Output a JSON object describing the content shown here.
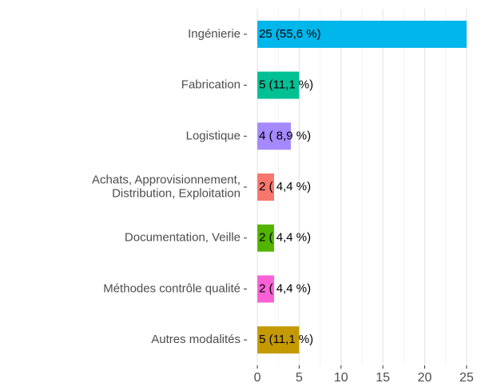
{
  "chart_data": {
    "type": "hbar",
    "categories": [
      "Ingénierie",
      "Fabrication",
      "Logistique",
      "Achats, Approvisionnement,\nDistribution, Exploitation",
      "Documentation, Veille",
      "Méthodes contrôle qualité",
      "Autres modalités"
    ],
    "values": [
      25,
      5,
      4,
      2,
      2,
      2,
      5
    ],
    "value_labels": [
      "25 (55,6 %)",
      "5 (11,1 %)",
      "4 ( 8,9 %)",
      "2 ( 4,4 %)",
      "2 ( 4,4 %)",
      "2 ( 4,4 %)",
      "5 (11,1 %)"
    ],
    "colors": [
      "#00B6EB",
      "#00C094",
      "#A58AFF",
      "#F8766D",
      "#53B400",
      "#FB61D7",
      "#C49A00"
    ],
    "xlim": [
      -1.25,
      26.25
    ],
    "xticks": [
      0,
      5,
      10,
      15,
      20,
      25
    ],
    "grid": true
  }
}
